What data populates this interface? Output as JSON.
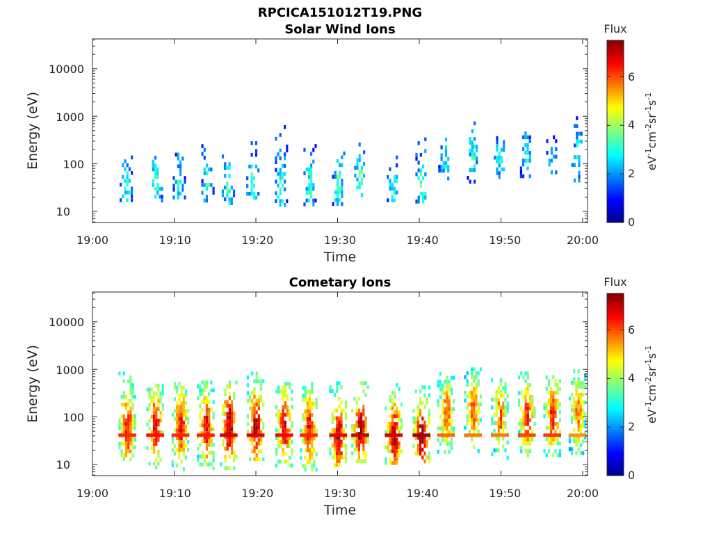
{
  "figure": {
    "file_title": "RPCICA151012T19.PNG"
  },
  "panels": [
    {
      "title": "Solar Wind Ions",
      "xlabel": "Time",
      "ylabel": "Energy (eV)",
      "xticks": [
        "19:00",
        "19:10",
        "19:20",
        "19:30",
        "19:40",
        "19:50",
        "20:00"
      ],
      "yticks": [
        "10",
        "100",
        "1000",
        "10000"
      ],
      "colorbar": {
        "title": "Flux",
        "ticks": [
          "0",
          "2",
          "4",
          "6"
        ],
        "label_base": "eV",
        "label_unit_parts": [
          "-1",
          "cm",
          "-2",
          "sr",
          "-1",
          "s",
          "-1"
        ]
      }
    },
    {
      "title": "Cometary Ions",
      "xlabel": "Time",
      "ylabel": "Energy (eV)",
      "xticks": [
        "19:00",
        "19:10",
        "19:20",
        "19:30",
        "19:40",
        "19:50",
        "20:00"
      ],
      "yticks": [
        "10",
        "100",
        "1000",
        "10000"
      ],
      "colorbar": {
        "title": "Flux",
        "ticks": [
          "0",
          "2",
          "4",
          "6"
        ],
        "label_base": "eV",
        "label_unit_parts": [
          "-1",
          "cm",
          "-2",
          "sr",
          "-1",
          "s",
          "-1"
        ]
      }
    }
  ],
  "chart_data": [
    {
      "type": "heatmap",
      "title": "Solar Wind Ions",
      "xlabel": "Time",
      "ylabel": "Energy (eV)",
      "x_range_minutes_after_1900": [
        0,
        60
      ],
      "y_range_eV": [
        6,
        45000
      ],
      "yscale": "log",
      "colorbar_range": [
        0,
        7.5
      ],
      "colormap": "jet",
      "bursts": [
        {
          "t": 4.0,
          "lo": 14,
          "hi": 150,
          "peak": 40,
          "flux": 3.0
        },
        {
          "t": 7.7,
          "lo": 14,
          "hi": 260,
          "peak": 50,
          "flux": 2.9
        },
        {
          "t": 10.5,
          "lo": 18,
          "hi": 250,
          "peak": 50,
          "flux": 2.7
        },
        {
          "t": 14.0,
          "lo": 18,
          "hi": 260,
          "peak": 50,
          "flux": 2.9
        },
        {
          "t": 16.5,
          "lo": 14,
          "hi": 230,
          "peak": 45,
          "flux": 3.1
        },
        {
          "t": 19.5,
          "lo": 18,
          "hi": 360,
          "peak": 40,
          "flux": 3.0
        },
        {
          "t": 23.0,
          "lo": 14,
          "hi": 650,
          "peak": 35,
          "flux": 2.9
        },
        {
          "t": 26.5,
          "lo": 14,
          "hi": 260,
          "peak": 40,
          "flux": 3.0
        },
        {
          "t": 30.0,
          "lo": 14,
          "hi": 220,
          "peak": 40,
          "flux": 3.1
        },
        {
          "t": 32.7,
          "lo": 20,
          "hi": 280,
          "peak": 60,
          "flux": 3.3
        },
        {
          "t": 36.7,
          "lo": 14,
          "hi": 180,
          "peak": 40,
          "flux": 2.9
        },
        {
          "t": 40.2,
          "lo": 16,
          "hi": 360,
          "peak": 35,
          "flux": 3.2
        },
        {
          "t": 43.0,
          "lo": 40,
          "hi": 430,
          "peak": 140,
          "flux": 2.7
        },
        {
          "t": 46.5,
          "lo": 40,
          "hi": 780,
          "peak": 180,
          "flux": 2.8
        },
        {
          "t": 49.8,
          "lo": 40,
          "hi": 380,
          "peak": 150,
          "flux": 2.7
        },
        {
          "t": 53.0,
          "lo": 60,
          "hi": 700,
          "peak": 160,
          "flux": 2.7
        },
        {
          "t": 56.2,
          "lo": 60,
          "hi": 580,
          "peak": 140,
          "flux": 2.5
        },
        {
          "t": 59.3,
          "lo": 45,
          "hi": 1000,
          "peak": 170,
          "flux": 2.6
        }
      ]
    },
    {
      "type": "heatmap",
      "title": "Cometary Ions",
      "xlabel": "Time",
      "ylabel": "Energy (eV)",
      "x_range_minutes_after_1900": [
        0,
        60
      ],
      "y_range_eV": [
        6,
        45000
      ],
      "yscale": "log",
      "colorbar_range": [
        0,
        7.5
      ],
      "colormap": "jet",
      "bursts": [
        {
          "t": 4.2,
          "lo": 12,
          "hi": 900,
          "peak": 60,
          "flux": 6.0
        },
        {
          "t": 7.6,
          "lo": 8,
          "hi": 500,
          "peak": 70,
          "flux": 6.2
        },
        {
          "t": 10.7,
          "lo": 8,
          "hi": 550,
          "peak": 70,
          "flux": 6.0
        },
        {
          "t": 13.8,
          "lo": 8,
          "hi": 580,
          "peak": 65,
          "flux": 6.1
        },
        {
          "t": 16.6,
          "lo": 8,
          "hi": 580,
          "peak": 70,
          "flux": 6.6
        },
        {
          "t": 19.9,
          "lo": 12,
          "hi": 900,
          "peak": 70,
          "flux": 6.5
        },
        {
          "t": 23.4,
          "lo": 8,
          "hi": 550,
          "peak": 70,
          "flux": 6.3
        },
        {
          "t": 26.4,
          "lo": 8,
          "hi": 540,
          "peak": 60,
          "flux": 6.0
        },
        {
          "t": 30.0,
          "lo": 10,
          "hi": 560,
          "peak": 40,
          "flux": 6.4
        },
        {
          "t": 32.7,
          "lo": 12,
          "hi": 560,
          "peak": 60,
          "flux": 6.7
        },
        {
          "t": 36.8,
          "lo": 10,
          "hi": 620,
          "peak": 40,
          "flux": 6.6
        },
        {
          "t": 40.2,
          "lo": 12,
          "hi": 460,
          "peak": 40,
          "flux": 7.0
        },
        {
          "t": 43.2,
          "lo": 20,
          "hi": 880,
          "peak": 130,
          "flux": 5.5
        },
        {
          "t": 46.5,
          "lo": 18,
          "hi": 1100,
          "peak": 150,
          "flux": 5.4
        },
        {
          "t": 49.8,
          "lo": 14,
          "hi": 650,
          "peak": 120,
          "flux": 5.4
        },
        {
          "t": 53.1,
          "lo": 16,
          "hi": 900,
          "peak": 110,
          "flux": 5.8
        },
        {
          "t": 56.2,
          "lo": 12,
          "hi": 750,
          "peak": 120,
          "flux": 5.9
        },
        {
          "t": 59.3,
          "lo": 14,
          "hi": 1000,
          "peak": 130,
          "flux": 5.2
        }
      ]
    }
  ]
}
